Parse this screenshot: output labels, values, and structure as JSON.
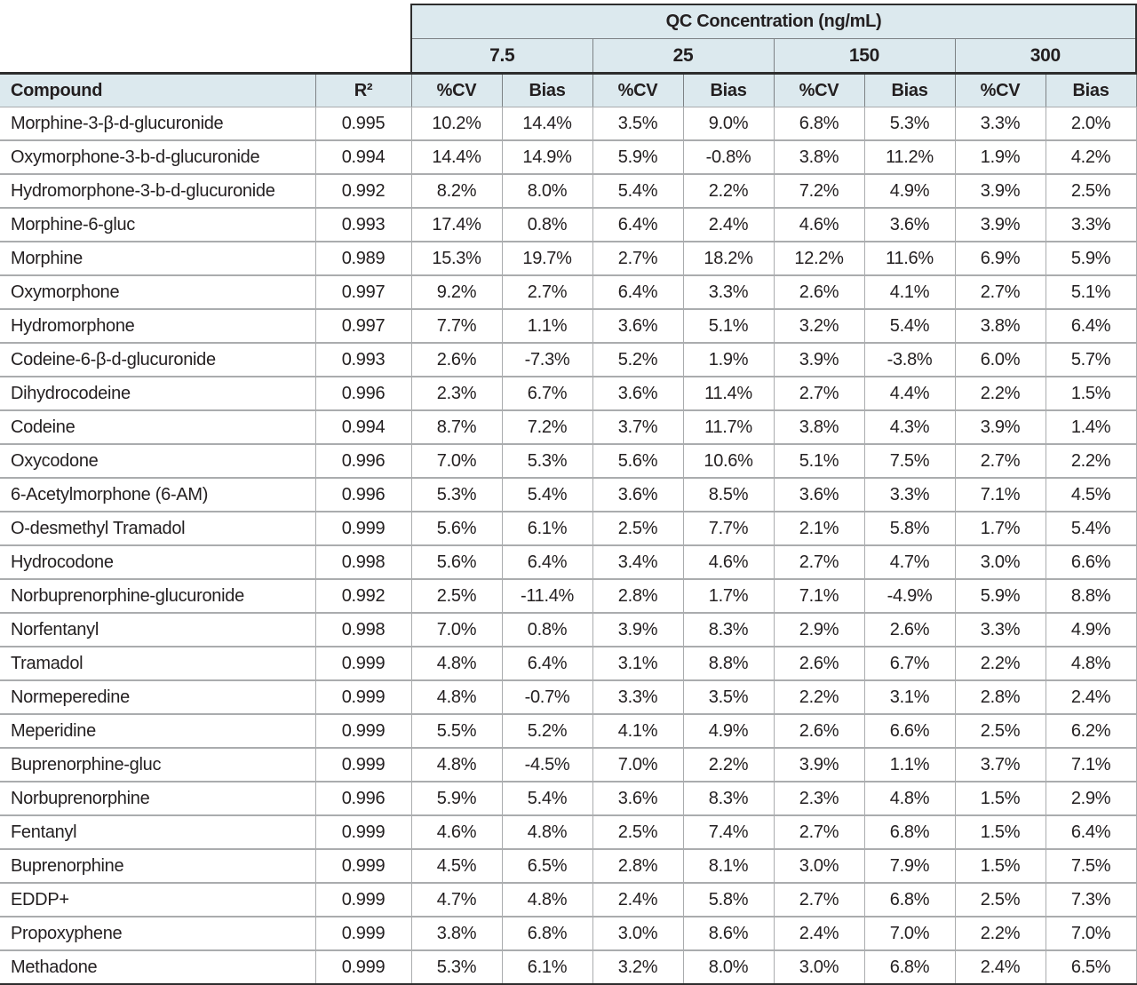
{
  "colors": {
    "header_bg": "#dce9ee",
    "grid_gray": "#aaacae",
    "header_grid_gray": "#7d8285",
    "dark_line": "#2d2d2d",
    "text": "#231f20"
  },
  "table": {
    "qc_header": "QC Concentration (ng/mL)",
    "concentrations": [
      "7.5",
      "25",
      "150",
      "300"
    ],
    "col_headers": {
      "compound": "Compound",
      "r2": "R²",
      "cv": "%CV",
      "bias": "Bias"
    },
    "rows": [
      {
        "compound": "Morphine-3-β-d-glucuronide",
        "r2": "0.995",
        "values": [
          "10.2%",
          "14.4%",
          "3.5%",
          "9.0%",
          "6.8%",
          "5.3%",
          "3.3%",
          "2.0%"
        ]
      },
      {
        "compound": "Oxymorphone-3-b-d-glucuronide",
        "r2": "0.994",
        "values": [
          "14.4%",
          "14.9%",
          "5.9%",
          "-0.8%",
          "3.8%",
          "11.2%",
          "1.9%",
          "4.2%"
        ]
      },
      {
        "compound": "Hydromorphone-3-b-d-glucuronide",
        "r2": "0.992",
        "values": [
          "8.2%",
          "8.0%",
          "5.4%",
          "2.2%",
          "7.2%",
          "4.9%",
          "3.9%",
          "2.5%"
        ]
      },
      {
        "compound": "Morphine-6-gluc",
        "r2": "0.993",
        "values": [
          "17.4%",
          "0.8%",
          "6.4%",
          "2.4%",
          "4.6%",
          "3.6%",
          "3.9%",
          "3.3%"
        ]
      },
      {
        "compound": "Morphine",
        "r2": "0.989",
        "values": [
          "15.3%",
          "19.7%",
          "2.7%",
          "18.2%",
          "12.2%",
          "11.6%",
          "6.9%",
          "5.9%"
        ]
      },
      {
        "compound": "Oxymorphone",
        "r2": "0.997",
        "values": [
          "9.2%",
          "2.7%",
          "6.4%",
          "3.3%",
          "2.6%",
          "4.1%",
          "2.7%",
          "5.1%"
        ]
      },
      {
        "compound": "Hydromorphone",
        "r2": "0.997",
        "values": [
          "7.7%",
          "1.1%",
          "3.6%",
          "5.1%",
          "3.2%",
          "5.4%",
          "3.8%",
          "6.4%"
        ]
      },
      {
        "compound": "Codeine-6-β-d-glucuronide",
        "r2": "0.993",
        "values": [
          "2.6%",
          "-7.3%",
          "5.2%",
          "1.9%",
          "3.9%",
          "-3.8%",
          "6.0%",
          "5.7%"
        ]
      },
      {
        "compound": "Dihydrocodeine",
        "r2": "0.996",
        "values": [
          "2.3%",
          "6.7%",
          "3.6%",
          "11.4%",
          "2.7%",
          "4.4%",
          "2.2%",
          "1.5%"
        ]
      },
      {
        "compound": "Codeine",
        "r2": "0.994",
        "values": [
          "8.7%",
          "7.2%",
          "3.7%",
          "11.7%",
          "3.8%",
          "4.3%",
          "3.9%",
          "1.4%"
        ]
      },
      {
        "compound": "Oxycodone",
        "r2": "0.996",
        "values": [
          "7.0%",
          "5.3%",
          "5.6%",
          "10.6%",
          "5.1%",
          "7.5%",
          "2.7%",
          "2.2%"
        ]
      },
      {
        "compound": "6-Acetylmorphone (6-AM)",
        "r2": "0.996",
        "values": [
          "5.3%",
          "5.4%",
          "3.6%",
          "8.5%",
          "3.6%",
          "3.3%",
          "7.1%",
          "4.5%"
        ]
      },
      {
        "compound": "O-desmethyl Tramadol",
        "r2": "0.999",
        "values": [
          "5.6%",
          "6.1%",
          "2.5%",
          "7.7%",
          "2.1%",
          "5.8%",
          "1.7%",
          "5.4%"
        ]
      },
      {
        "compound": "Hydrocodone",
        "r2": "0.998",
        "values": [
          "5.6%",
          "6.4%",
          "3.4%",
          "4.6%",
          "2.7%",
          "4.7%",
          "3.0%",
          "6.6%"
        ]
      },
      {
        "compound": "Norbuprenorphine-glucuronide",
        "r2": "0.992",
        "values": [
          "2.5%",
          "-11.4%",
          "2.8%",
          "1.7%",
          "7.1%",
          "-4.9%",
          "5.9%",
          "8.8%"
        ]
      },
      {
        "compound": "Norfentanyl",
        "r2": "0.998",
        "values": [
          "7.0%",
          "0.8%",
          "3.9%",
          "8.3%",
          "2.9%",
          "2.6%",
          "3.3%",
          "4.9%"
        ]
      },
      {
        "compound": "Tramadol",
        "r2": "0.999",
        "values": [
          "4.8%",
          "6.4%",
          "3.1%",
          "8.8%",
          "2.6%",
          "6.7%",
          "2.2%",
          "4.8%"
        ]
      },
      {
        "compound": "Normeperedine",
        "r2": "0.999",
        "values": [
          "4.8%",
          "-0.7%",
          "3.3%",
          "3.5%",
          "2.2%",
          "3.1%",
          "2.8%",
          "2.4%"
        ]
      },
      {
        "compound": "Meperidine",
        "r2": "0.999",
        "values": [
          "5.5%",
          "5.2%",
          "4.1%",
          "4.9%",
          "2.6%",
          "6.6%",
          "2.5%",
          "6.2%"
        ]
      },
      {
        "compound": "Buprenorphine-gluc",
        "r2": "0.999",
        "values": [
          "4.8%",
          "-4.5%",
          "7.0%",
          "2.2%",
          "3.9%",
          "1.1%",
          "3.7%",
          "7.1%"
        ]
      },
      {
        "compound": "Norbuprenorphine",
        "r2": "0.996",
        "values": [
          "5.9%",
          "5.4%",
          "3.6%",
          "8.3%",
          "2.3%",
          "4.8%",
          "1.5%",
          "2.9%"
        ]
      },
      {
        "compound": "Fentanyl",
        "r2": "0.999",
        "values": [
          "4.6%",
          "4.8%",
          "2.5%",
          "7.4%",
          "2.7%",
          "6.8%",
          "1.5%",
          "6.4%"
        ]
      },
      {
        "compound": "Buprenorphine",
        "r2": "0.999",
        "values": [
          "4.5%",
          "6.5%",
          "2.8%",
          "8.1%",
          "3.0%",
          "7.9%",
          "1.5%",
          "7.5%"
        ]
      },
      {
        "compound": "EDDP+",
        "r2": "0.999",
        "values": [
          "4.7%",
          "4.8%",
          "2.4%",
          "5.8%",
          "2.7%",
          "6.8%",
          "2.5%",
          "7.3%"
        ]
      },
      {
        "compound": "Propoxyphene",
        "r2": "0.999",
        "values": [
          "3.8%",
          "6.8%",
          "3.0%",
          "8.6%",
          "2.4%",
          "7.0%",
          "2.2%",
          "7.0%"
        ]
      },
      {
        "compound": "Methadone",
        "r2": "0.999",
        "values": [
          "5.3%",
          "6.1%",
          "3.2%",
          "8.0%",
          "3.0%",
          "6.8%",
          "2.4%",
          "6.5%"
        ]
      }
    ]
  }
}
